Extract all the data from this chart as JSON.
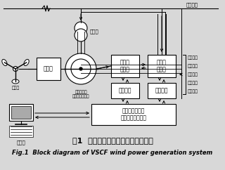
{
  "title_cn": "图1  变速恒频风力发电系统原理框图",
  "title_en": "Fig.1  Block diagram of VSCF wind power generation system",
  "bg_color": "#d8d8d8",
  "box_color": "#ffffff",
  "text_color": "#000000",
  "power_line_label": "电力系统",
  "transformer_label": "变压器",
  "gearbox_label": "增速箱",
  "generator_label1": "双馈式变速",
  "generator_label2": "恒频风力发电机",
  "fan_label": "风力机",
  "rotor_conv_label": "转子侧\n变流器",
  "grid_conv_label": "电网侧\n变流器",
  "drive1_label": "驱动电路",
  "drive2_label": "驱动电路",
  "controller_label": "基于微处理器的\n变速恒频控制系统",
  "computer_label": "控制台",
  "right_labels": [
    "定子电压",
    "定子电流",
    "转子电压",
    "转子电流",
    "电机转速"
  ]
}
